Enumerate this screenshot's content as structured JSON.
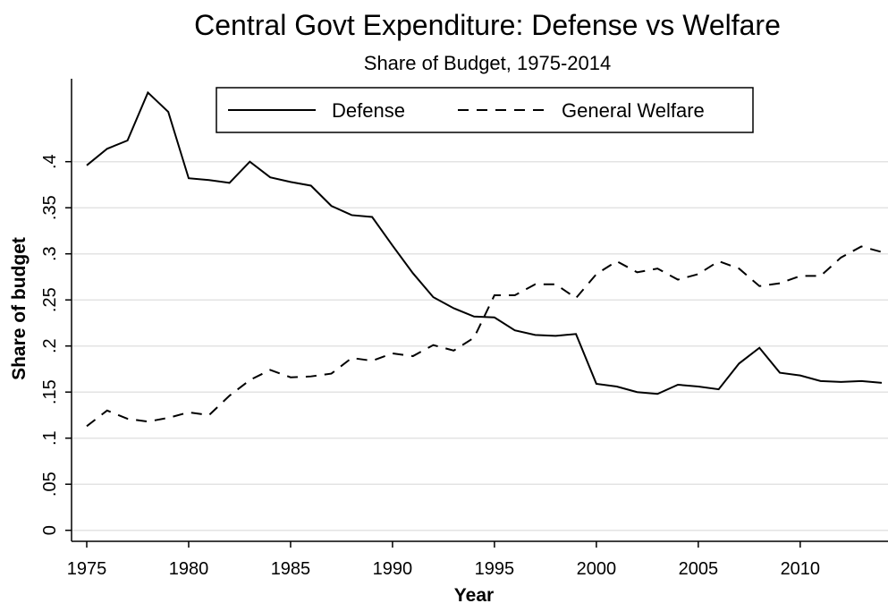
{
  "chart_data": {
    "type": "line",
    "title": "Central Govt Expenditure: Defense vs Welfare",
    "subtitle": "Share of Budget, 1975-2014",
    "x_label": "Year",
    "y_label": "Share of budget",
    "x": [
      1975,
      1976,
      1977,
      1978,
      1979,
      1980,
      1981,
      1982,
      1983,
      1984,
      1985,
      1986,
      1987,
      1988,
      1989,
      1990,
      1991,
      1992,
      1993,
      1994,
      1995,
      1996,
      1997,
      1998,
      1999,
      2000,
      2001,
      2002,
      2003,
      2004,
      2005,
      2006,
      2007,
      2008,
      2009,
      2010,
      2011,
      2012,
      2013,
      2014
    ],
    "series": [
      {
        "name": "Defense",
        "color": "#000000",
        "line_style": "solid",
        "values": [
          0.396,
          0.414,
          0.423,
          0.475,
          0.454,
          0.382,
          0.38,
          0.377,
          0.4,
          0.383,
          0.378,
          0.374,
          0.352,
          0.342,
          0.34,
          0.309,
          0.279,
          0.253,
          0.241,
          0.232,
          0.231,
          0.217,
          0.212,
          0.211,
          0.213,
          0.159,
          0.156,
          0.15,
          0.148,
          0.158,
          0.156,
          0.153,
          0.181,
          0.198,
          0.171,
          0.168,
          0.162,
          0.161,
          0.162,
          0.16
        ]
      },
      {
        "name": "General Welfare",
        "color": "#000000",
        "line_style": "dashed",
        "values": [
          0.113,
          0.13,
          0.121,
          0.118,
          0.122,
          0.128,
          0.125,
          0.146,
          0.163,
          0.174,
          0.166,
          0.167,
          0.17,
          0.187,
          0.184,
          0.192,
          0.189,
          0.201,
          0.195,
          0.209,
          0.255,
          0.255,
          0.267,
          0.267,
          0.252,
          0.278,
          0.292,
          0.28,
          0.284,
          0.272,
          0.278,
          0.292,
          0.284,
          0.265,
          0.268,
          0.276,
          0.276,
          0.296,
          0.308,
          0.302
        ]
      }
    ],
    "xlim": [
      1975,
      2014
    ],
    "xticks": [
      1975,
      1980,
      1985,
      1990,
      1995,
      2000,
      2005,
      2010
    ],
    "ylim": [
      -0.01,
      0.49
    ],
    "yticks": [
      0,
      {
        "value": 0.05,
        "label": ".05"
      },
      {
        "value": 0.1,
        "label": ".1"
      },
      {
        "value": 0.15,
        "label": ".15"
      },
      {
        "value": 0.2,
        "label": ".2"
      },
      {
        "value": 0.25,
        "label": ".25"
      },
      {
        "value": 0.3,
        "label": ".3"
      },
      {
        "value": 0.35,
        "label": ".35"
      },
      {
        "value": 0.4,
        "label": ".4"
      }
    ],
    "grid": true,
    "legend_position": "top"
  }
}
